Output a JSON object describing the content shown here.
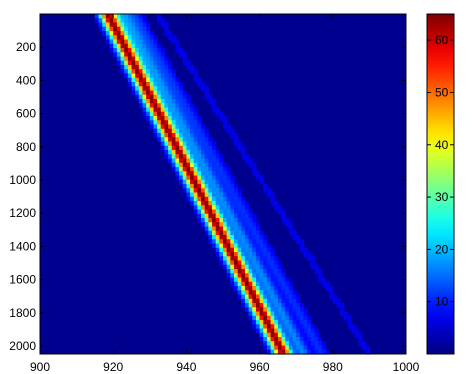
{
  "chart_data": {
    "type": "heatmap",
    "title": "",
    "xlabel": "",
    "ylabel": "",
    "xlim": [
      900,
      1000
    ],
    "ylim": [
      2048,
      0
    ],
    "x_ticks": [
      "900",
      "920",
      "940",
      "960",
      "980",
      "1000"
    ],
    "x_tick_values": [
      900,
      920,
      940,
      960,
      980,
      1000
    ],
    "y_ticks": [
      "200",
      "400",
      "600",
      "800",
      "1000",
      "1200",
      "1400",
      "1600",
      "1800",
      "2000"
    ],
    "y_tick_values": [
      200,
      400,
      600,
      800,
      1000,
      1200,
      1400,
      1600,
      1800,
      2000
    ],
    "colormap": "jet",
    "colorbar": {
      "range": [
        0,
        65
      ],
      "ticks": [
        "10",
        "20",
        "30",
        "40",
        "50",
        "60"
      ],
      "tick_values": [
        10,
        20,
        30,
        40,
        50,
        60
      ]
    },
    "ridges": [
      {
        "x_at_row_0": 918.5,
        "x_at_row_2048": 966.5,
        "peak": 65,
        "width": 1.6
      },
      {
        "x_at_row_0": 923.0,
        "x_at_row_2048": 972.0,
        "peak": 13,
        "width": 1.4
      },
      {
        "x_at_row_0": 926.0,
        "x_at_row_2048": 977.0,
        "peak": 7,
        "width": 1.4
      },
      {
        "x_at_row_0": 932.0,
        "x_at_row_2048": 990.0,
        "peak": 2.5,
        "width": 1.2
      },
      {
        "x_at_row_0": 940.0,
        "x_at_row_2048": 998.0,
        "peak": 1.5,
        "width": 1.2
      }
    ]
  }
}
